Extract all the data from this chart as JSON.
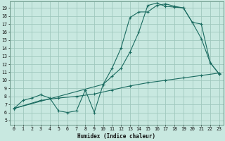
{
  "xlabel": "Humidex (Indice chaleur)",
  "bg_color": "#c8e8e0",
  "grid_color": "#a0c8be",
  "line_color": "#1a6b60",
  "xlim": [
    -0.5,
    23.5
  ],
  "ylim": [
    4.5,
    19.8
  ],
  "xticks": [
    0,
    1,
    2,
    3,
    4,
    5,
    6,
    7,
    8,
    9,
    10,
    11,
    12,
    13,
    14,
    15,
    16,
    17,
    18,
    19,
    20,
    21,
    22,
    23
  ],
  "yticks": [
    5,
    6,
    7,
    8,
    9,
    10,
    11,
    12,
    13,
    14,
    15,
    16,
    17,
    18,
    19
  ],
  "line1_x": [
    0,
    1,
    2,
    3,
    4,
    5,
    6,
    7,
    8,
    9,
    10,
    11,
    12,
    13,
    14,
    15,
    16,
    17,
    18,
    19,
    20,
    21,
    22,
    23
  ],
  "line1_y": [
    6.5,
    7.5,
    7.8,
    8.2,
    7.8,
    6.2,
    6.0,
    6.2,
    8.8,
    6.0,
    9.5,
    10.5,
    11.5,
    13.5,
    16.0,
    19.3,
    19.6,
    19.2,
    19.1,
    19.0,
    17.2,
    15.2,
    12.2,
    10.8
  ],
  "line2_x": [
    0,
    10,
    11,
    12,
    13,
    14,
    15,
    16,
    17,
    18,
    19,
    20,
    21,
    22,
    23
  ],
  "line2_y": [
    6.5,
    9.5,
    11.5,
    14.0,
    17.8,
    18.5,
    18.5,
    19.3,
    19.5,
    19.2,
    19.0,
    17.2,
    17.0,
    12.2,
    10.8
  ],
  "line3_x": [
    0,
    3,
    5,
    7,
    9,
    11,
    13,
    15,
    17,
    19,
    21,
    23
  ],
  "line3_y": [
    6.5,
    7.5,
    7.8,
    8.0,
    8.3,
    8.8,
    9.3,
    9.7,
    10.0,
    10.3,
    10.6,
    10.9
  ]
}
